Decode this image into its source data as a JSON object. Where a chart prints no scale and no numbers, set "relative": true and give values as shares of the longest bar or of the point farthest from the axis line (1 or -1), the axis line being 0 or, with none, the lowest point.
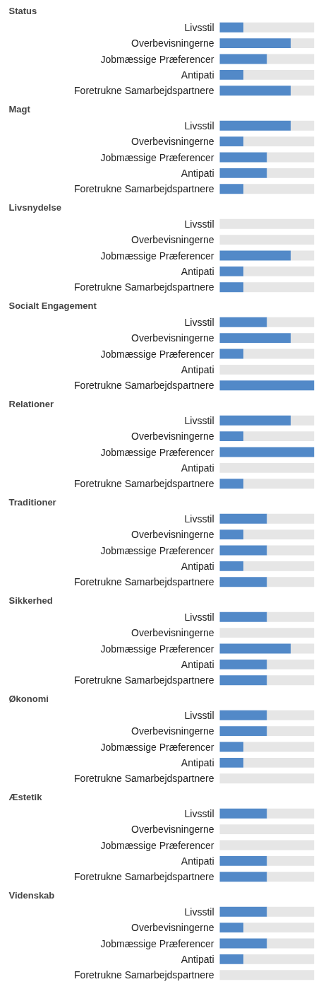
{
  "chart_data": [
    {
      "type": "bar",
      "orientation": "horizontal",
      "stacked": true,
      "relative": true,
      "title": "Status",
      "categories": [
        "Livsstil",
        "Overbevisningerne",
        "Jobmæssige Præferencer",
        "Antipati",
        "Foretrukne Samarbejdspartnere"
      ],
      "series": [
        {
          "color": "#5289c8",
          "values": [
            0.25,
            0.75,
            0.5,
            0.25,
            0.75
          ]
        },
        {
          "color": "#e6e6e6",
          "values": [
            0.75,
            0.25,
            0.5,
            0.75,
            0.25
          ]
        }
      ]
    },
    {
      "type": "bar",
      "orientation": "horizontal",
      "stacked": true,
      "relative": true,
      "title": "Magt",
      "categories": [
        "Livsstil",
        "Overbevisningerne",
        "Jobmæssige Præferencer",
        "Antipati",
        "Foretrukne Samarbejdspartnere"
      ],
      "series": [
        {
          "color": "#5289c8",
          "values": [
            0.75,
            0.25,
            0.5,
            0.5,
            0.25
          ]
        },
        {
          "color": "#e6e6e6",
          "values": [
            0.25,
            0.75,
            0.5,
            0.5,
            0.75
          ]
        }
      ]
    },
    {
      "type": "bar",
      "orientation": "horizontal",
      "stacked": true,
      "relative": true,
      "title": "Livsnydelse",
      "categories": [
        "Livsstil",
        "Overbevisningerne",
        "Jobmæssige Præferencer",
        "Antipati",
        "Foretrukne Samarbejdspartnere"
      ],
      "series": [
        {
          "color": "#5289c8",
          "values": [
            0,
            0,
            0.75,
            0.25,
            0.25
          ]
        },
        {
          "color": "#e6e6e6",
          "values": [
            1,
            1,
            0.25,
            0.75,
            0.75
          ]
        }
      ]
    },
    {
      "type": "bar",
      "orientation": "horizontal",
      "stacked": true,
      "relative": true,
      "title": "Socialt Engagement",
      "categories": [
        "Livsstil",
        "Overbevisningerne",
        "Jobmæssige Præferencer",
        "Antipati",
        "Foretrukne Samarbejdspartnere"
      ],
      "series": [
        {
          "color": "#5289c8",
          "values": [
            0.5,
            0.75,
            0.25,
            0,
            1
          ]
        },
        {
          "color": "#e6e6e6",
          "values": [
            0.5,
            0.25,
            0.75,
            1,
            0
          ]
        }
      ]
    },
    {
      "type": "bar",
      "orientation": "horizontal",
      "stacked": true,
      "relative": true,
      "title": "Relationer",
      "categories": [
        "Livsstil",
        "Overbevisningerne",
        "Jobmæssige Præferencer",
        "Antipati",
        "Foretrukne Samarbejdspartnere"
      ],
      "series": [
        {
          "color": "#5289c8",
          "values": [
            0.75,
            0.25,
            1,
            0,
            0.25
          ]
        },
        {
          "color": "#e6e6e6",
          "values": [
            0.25,
            0.75,
            0,
            1,
            0.75
          ]
        }
      ]
    },
    {
      "type": "bar",
      "orientation": "horizontal",
      "stacked": true,
      "relative": true,
      "title": "Traditioner",
      "categories": [
        "Livsstil",
        "Overbevisningerne",
        "Jobmæssige Præferencer",
        "Antipati",
        "Foretrukne Samarbejdspartnere"
      ],
      "series": [
        {
          "color": "#5289c8",
          "values": [
            0.5,
            0.25,
            0.5,
            0.25,
            0.5
          ]
        },
        {
          "color": "#e6e6e6",
          "values": [
            0.5,
            0.75,
            0.5,
            0.75,
            0.5
          ]
        }
      ]
    },
    {
      "type": "bar",
      "orientation": "horizontal",
      "stacked": true,
      "relative": true,
      "title": "Sikkerhed",
      "categories": [
        "Livsstil",
        "Overbevisningerne",
        "Jobmæssige Præferencer",
        "Antipati",
        "Foretrukne Samarbejdspartnere"
      ],
      "series": [
        {
          "color": "#5289c8",
          "values": [
            0.5,
            0,
            0.75,
            0.5,
            0.5
          ]
        },
        {
          "color": "#e6e6e6",
          "values": [
            0.5,
            1,
            0.25,
            0.5,
            0.5
          ]
        }
      ]
    },
    {
      "type": "bar",
      "orientation": "horizontal",
      "stacked": true,
      "relative": true,
      "title": "Økonomi",
      "categories": [
        "Livsstil",
        "Overbevisningerne",
        "Jobmæssige Præferencer",
        "Antipati",
        "Foretrukne Samarbejdspartnere"
      ],
      "series": [
        {
          "color": "#5289c8",
          "values": [
            0.5,
            0.5,
            0.25,
            0.25,
            0
          ]
        },
        {
          "color": "#e6e6e6",
          "values": [
            0.5,
            0.5,
            0.75,
            0.75,
            1
          ]
        }
      ]
    },
    {
      "type": "bar",
      "orientation": "horizontal",
      "stacked": true,
      "relative": true,
      "title": "Æstetik",
      "categories": [
        "Livsstil",
        "Overbevisningerne",
        "Jobmæssige Præferencer",
        "Antipati",
        "Foretrukne Samarbejdspartnere"
      ],
      "series": [
        {
          "color": "#5289c8",
          "values": [
            0.5,
            0,
            0,
            0.5,
            0.5
          ]
        },
        {
          "color": "#e6e6e6",
          "values": [
            0.5,
            1,
            1,
            0.5,
            0.5
          ]
        }
      ]
    },
    {
      "type": "bar",
      "orientation": "horizontal",
      "stacked": true,
      "relative": true,
      "title": "Videnskab",
      "categories": [
        "Livsstil",
        "Overbevisningerne",
        "Jobmæssige Præferencer",
        "Antipati",
        "Foretrukne Samarbejdspartnere"
      ],
      "series": [
        {
          "color": "#5289c8",
          "values": [
            0.5,
            0.25,
            0.5,
            0.25,
            0
          ]
        },
        {
          "color": "#e6e6e6",
          "values": [
            0.5,
            0.75,
            0.5,
            0.75,
            1
          ]
        }
      ]
    }
  ]
}
